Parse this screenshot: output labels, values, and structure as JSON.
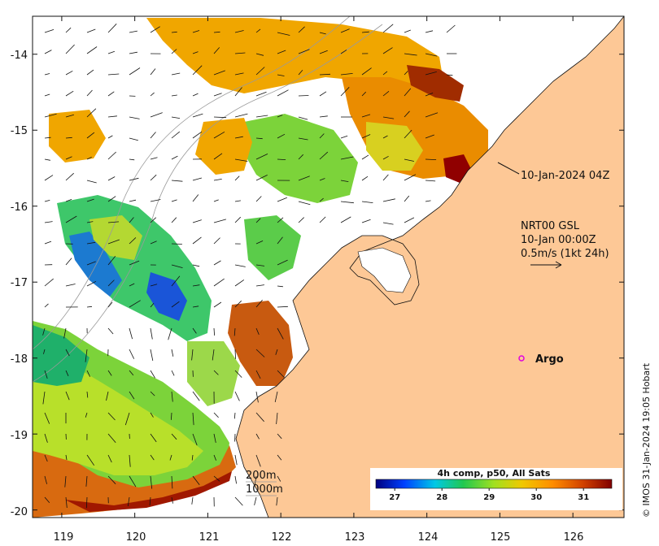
{
  "map": {
    "lon_ticks": [
      "119",
      "120",
      "121",
      "122",
      "123",
      "124",
      "125",
      "126"
    ],
    "lat_ticks": [
      "-14",
      "-15",
      "-16",
      "-17",
      "-18",
      "-19",
      "-20"
    ],
    "lon_range": [
      118.6,
      126.7
    ],
    "lat_range": [
      -20.1,
      -13.5
    ],
    "land_color": "#fdc896",
    "ocean_color": "#ffffff"
  },
  "annotations": {
    "sst_time": "10-Jan-2024 04Z",
    "current_model": "NRT00 GSL",
    "current_time": "10-Jan 00:00Z",
    "current_scale": "0.5m/s (1kt 24h)",
    "argo_label": "Argo",
    "argo_marker_color": "#e000e0",
    "isobath_1": "200m",
    "isobath_2": "1000m"
  },
  "colorbar": {
    "title": "4h comp, p50, All Sats",
    "ticks": [
      "27",
      "28",
      "29",
      "30",
      "31"
    ],
    "range": [
      26.6,
      31.6
    ],
    "colors": [
      "#00007f",
      "#0040ff",
      "#00c8e6",
      "#20c850",
      "#a0e020",
      "#f0c800",
      "#ff8c00",
      "#d04000",
      "#800000"
    ]
  },
  "credit": "© IMOS 31-Jan-2024 19:05 Hobart"
}
